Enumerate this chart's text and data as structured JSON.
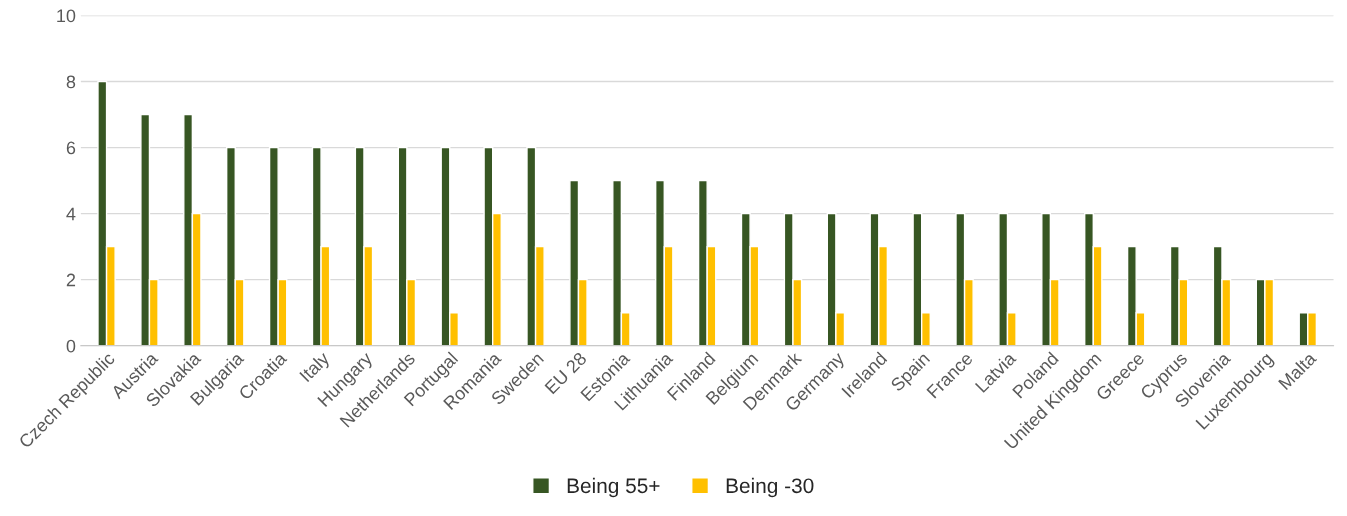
{
  "chart_data": {
    "type": "bar",
    "categories": [
      "Czech Republic",
      "Austria",
      "Slovakia",
      "Bulgaria",
      "Croatia",
      "Italy",
      "Hungary",
      "Netherlands",
      "Portugal",
      "Romania",
      "Sweden",
      "EU 28",
      "Estonia",
      "Lithuania",
      "Finland",
      "Belgium",
      "Denmark",
      "Germany",
      "Ireland",
      "Spain",
      "France",
      "Latvia",
      "Poland",
      "United Kingdom",
      "Greece",
      "Cyprus",
      "Slovenia",
      "Luxembourg",
      "Malta"
    ],
    "series": [
      {
        "name": "Being 55+",
        "color": "#375623",
        "values": [
          8,
          7,
          7,
          6,
          6,
          6,
          6,
          6,
          6,
          6,
          6,
          5,
          5,
          5,
          5,
          4,
          4,
          4,
          4,
          4,
          4,
          4,
          4,
          4,
          3,
          3,
          3,
          2,
          1
        ]
      },
      {
        "name": "Being -30",
        "color": "#ffc000",
        "values": [
          3,
          2,
          4,
          2,
          2,
          3,
          3,
          2,
          1,
          4,
          3,
          2,
          1,
          3,
          3,
          3,
          2,
          1,
          3,
          1,
          2,
          1,
          2,
          3,
          1,
          2,
          2,
          2,
          1
        ]
      }
    ],
    "ylim": [
      0,
      10
    ],
    "yticks": [
      0,
      2,
      4,
      6,
      8,
      10
    ],
    "grid": "y",
    "legend": "bottom"
  }
}
